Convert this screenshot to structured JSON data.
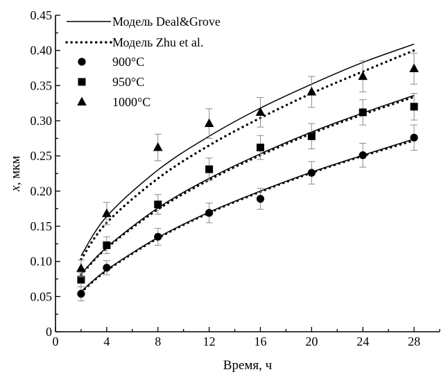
{
  "chart_data": {
    "type": "scatter",
    "xlabel": "Время, ч",
    "ylabel_var": "x",
    "ylabel_unit": ", мкм",
    "xlim": [
      0,
      30
    ],
    "ylim": [
      0,
      0.45
    ],
    "xticks": [
      "0",
      "4",
      "8",
      "12",
      "16",
      "20",
      "24",
      "28"
    ],
    "yticks": [
      "0",
      "0.05",
      "0.10",
      "0.15",
      "0.20",
      "0.25",
      "0.30",
      "0.35",
      "0.40",
      "0.45"
    ],
    "grid": false,
    "legend_position": "top-left",
    "models": [
      {
        "name": "Модель Deal&Grove",
        "style": "solid",
        "curves": [
          {
            "for": "900°C",
            "x": [
              2,
              4,
              8,
              12,
              16,
              20,
              24,
              28
            ],
            "y": [
              0.057,
              0.088,
              0.134,
              0.17,
              0.2,
              0.227,
              0.251,
              0.274
            ]
          },
          {
            "for": "950°C",
            "x": [
              2,
              4,
              8,
              12,
              16,
              20,
              24,
              28
            ],
            "y": [
              0.082,
              0.12,
              0.176,
              0.218,
              0.253,
              0.284,
              0.311,
              0.336
            ]
          },
          {
            "for": "1000°C",
            "x": [
              2,
              4,
              8,
              12,
              16,
              20,
              24,
              28
            ],
            "y": [
              0.108,
              0.164,
              0.23,
              0.278,
              0.318,
              0.352,
              0.383,
              0.409
            ]
          }
        ]
      },
      {
        "name": "Модель Zhu et al.",
        "style": "dotted",
        "curves": [
          {
            "for": "900°C",
            "x": [
              2,
              4,
              8,
              12,
              16,
              20,
              24,
              28
            ],
            "y": [
              0.056,
              0.087,
              0.133,
              0.169,
              0.199,
              0.226,
              0.25,
              0.272
            ]
          },
          {
            "for": "950°C",
            "x": [
              2,
              4,
              8,
              12,
              16,
              20,
              24,
              28
            ],
            "y": [
              0.081,
              0.119,
              0.174,
              0.216,
              0.251,
              0.282,
              0.309,
              0.334
            ]
          },
          {
            "for": "1000°C",
            "x": [
              2,
              4,
              8,
              12,
              16,
              20,
              24,
              28
            ],
            "y": [
              0.103,
              0.155,
              0.218,
              0.265,
              0.304,
              0.339,
              0.37,
              0.4
            ]
          }
        ]
      }
    ],
    "series": [
      {
        "name": "900°C",
        "marker": "circle",
        "x": [
          2,
          4,
          8,
          12,
          16,
          20,
          24,
          28
        ],
        "y": [
          0.054,
          0.091,
          0.135,
          0.169,
          0.189,
          0.226,
          0.251,
          0.276
        ],
        "error": [
          0.01,
          0.01,
          0.012,
          0.014,
          0.015,
          0.016,
          0.017,
          0.018
        ]
      },
      {
        "name": "950°C",
        "marker": "square",
        "x": [
          2,
          4,
          8,
          12,
          16,
          20,
          24,
          28
        ],
        "y": [
          0.074,
          0.123,
          0.181,
          0.231,
          0.262,
          0.278,
          0.312,
          0.32
        ],
        "error": [
          0.01,
          0.012,
          0.014,
          0.016,
          0.017,
          0.018,
          0.018,
          0.019
        ]
      },
      {
        "name": "1000°C",
        "marker": "triangle",
        "x": [
          2,
          4,
          8,
          12,
          16,
          20,
          24,
          28
        ],
        "y": [
          0.09,
          0.168,
          0.262,
          0.296,
          0.312,
          0.341,
          0.363,
          0.374
        ],
        "error": [
          0.012,
          0.016,
          0.019,
          0.021,
          0.021,
          0.022,
          0.022,
          0.022
        ]
      }
    ]
  }
}
